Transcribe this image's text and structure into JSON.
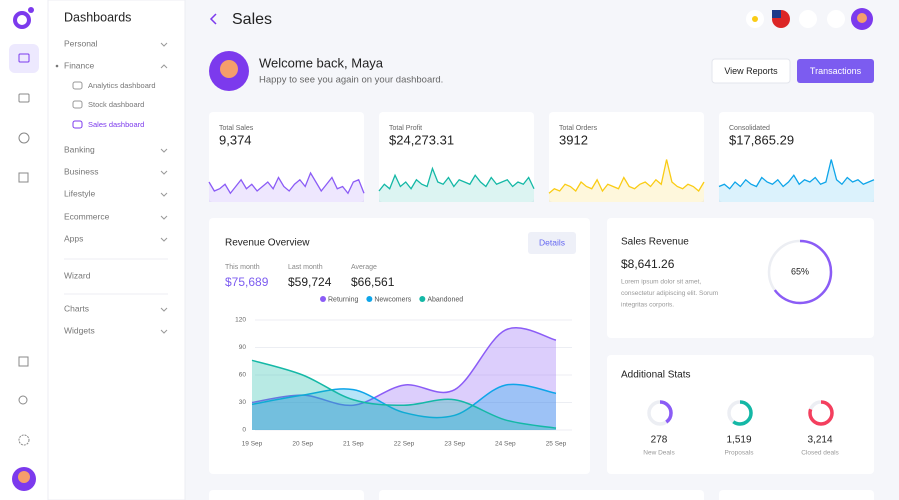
{
  "nav": {
    "title": "Dashboards",
    "items": [
      "Personal",
      "Finance",
      "Analytics dashboard",
      "Stock dashboard",
      "Sales dashboard",
      "Banking",
      "Business",
      "Lifestyle",
      "Ecommerce",
      "Apps",
      "Wizard",
      "Charts",
      "Widgets"
    ]
  },
  "header": {
    "title": "Sales"
  },
  "welcome": {
    "title": "Welcome back, Maya",
    "subtitle": "Happy to see you again on your dashboard.",
    "buttons": [
      "View Reports",
      "Transactions"
    ]
  },
  "stats": [
    {
      "label": "Total Sales",
      "value": "9,374",
      "color": "#8b5cf6",
      "spark": [
        40,
        20,
        25,
        35,
        15,
        30,
        45,
        25,
        35,
        20,
        30,
        40,
        25,
        50,
        30,
        20,
        35,
        45,
        30,
        60,
        40,
        20,
        35,
        50,
        25,
        30,
        15,
        40,
        45,
        15
      ]
    },
    {
      "label": "Total Profit",
      "value": "$24,273.31",
      "color": "#14b8a6",
      "spark": [
        20,
        35,
        25,
        55,
        30,
        40,
        25,
        45,
        35,
        30,
        70,
        40,
        35,
        50,
        30,
        45,
        40,
        35,
        55,
        40,
        30,
        50,
        35,
        40,
        45,
        30,
        40,
        35,
        50,
        25
      ]
    },
    {
      "label": "Total Orders",
      "value": "3912",
      "color": "#facc15",
      "spark": [
        15,
        25,
        20,
        35,
        30,
        20,
        40,
        30,
        25,
        45,
        20,
        35,
        30,
        25,
        50,
        30,
        25,
        35,
        40,
        30,
        45,
        35,
        90,
        40,
        30,
        25,
        35,
        30,
        20,
        40
      ]
    },
    {
      "label": "Consolidated",
      "value": "$17,865.29",
      "color": "#0ea5e9",
      "spark": [
        30,
        35,
        25,
        40,
        30,
        45,
        35,
        30,
        50,
        40,
        35,
        45,
        30,
        40,
        55,
        35,
        45,
        40,
        50,
        35,
        40,
        90,
        45,
        35,
        50,
        40,
        45,
        35,
        40,
        45
      ]
    }
  ],
  "revenue": {
    "title": "Revenue Overview",
    "button": "Details",
    "summary": [
      {
        "label": "This month",
        "value": "$75,689"
      },
      {
        "label": "Last month",
        "value": "$59,724"
      },
      {
        "label": "Average",
        "value": "$66,561"
      }
    ],
    "chart": {
      "type": "area",
      "categories": [
        "19 Sep",
        "20 Sep",
        "21 Sep",
        "22 Sep",
        "23 Sep",
        "24 Sep",
        "25 Sep"
      ],
      "series": [
        {
          "name": "Returning",
          "color": "#8b5cf6",
          "values": [
            30,
            38,
            27,
            49,
            44,
            109,
            98
          ]
        },
        {
          "name": "Newcomers",
          "color": "#0ea5e9",
          "values": [
            28,
            38,
            44,
            19,
            16,
            49,
            40
          ]
        },
        {
          "name": "Abandoned",
          "color": "#14b8a6",
          "values": [
            76,
            60,
            33,
            27,
            33,
            11,
            2
          ]
        }
      ],
      "ylim": [
        0,
        120
      ],
      "yticks": [
        0,
        30,
        60,
        90,
        120
      ],
      "grid": true
    }
  },
  "sales_revenue": {
    "title": "Sales Revenue",
    "amount": "$8,641.26",
    "text": [
      "Lorem ipsum dolor sit amet,",
      "consectetur adipiscing elit. Sorum",
      "integritas corporis."
    ],
    "percent": 65,
    "label": "65%",
    "color": "#8b5cf6"
  },
  "additional": {
    "title": "Additional Stats",
    "items": [
      {
        "value": "278",
        "label": "New Deals",
        "progress": 40,
        "color": "#8b5cf6"
      },
      {
        "value": "1,519",
        "label": "Proposals",
        "progress": 60,
        "color": "#14b8a6"
      },
      {
        "value": "3,214",
        "label": "Closed deals",
        "progress": 80,
        "color": "#f43f5e"
      }
    ]
  }
}
